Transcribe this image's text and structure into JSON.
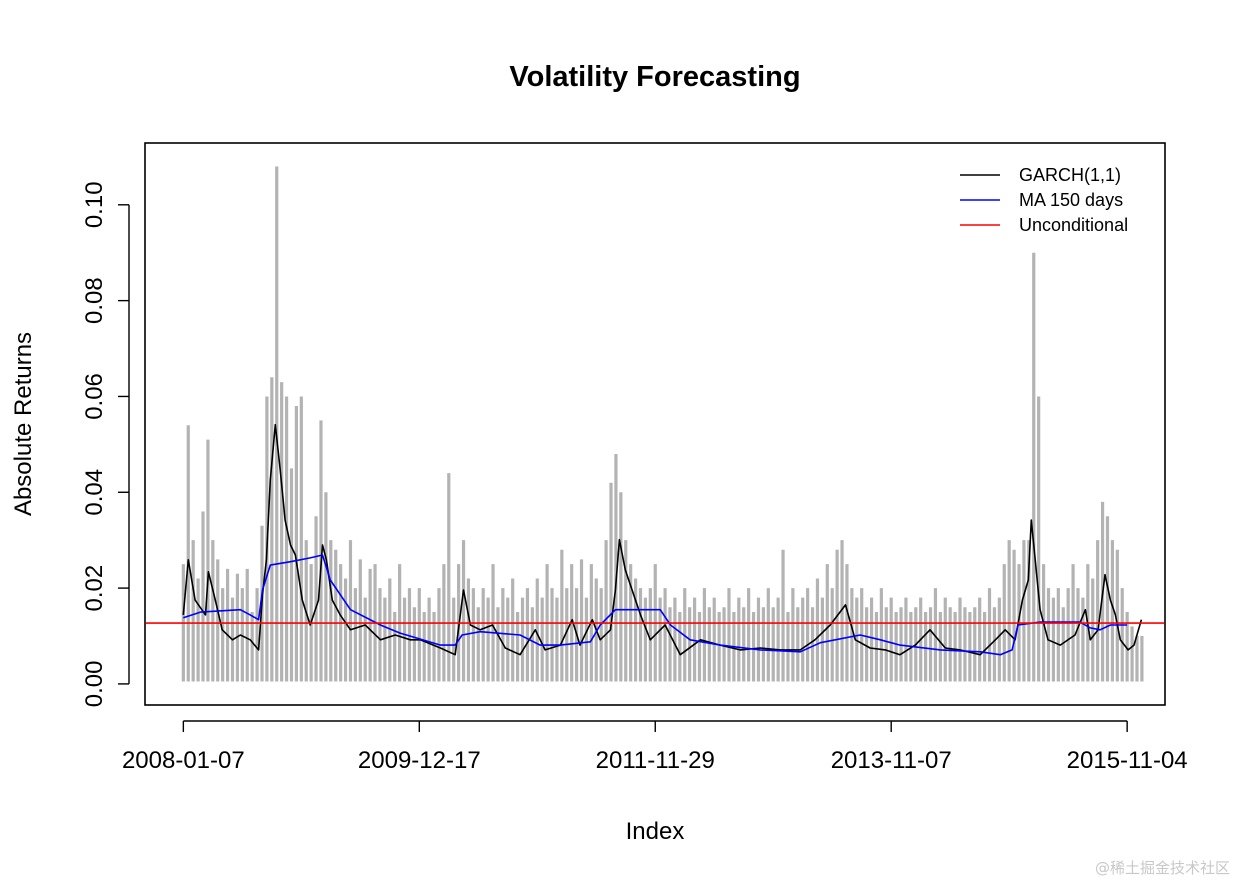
{
  "chart_data": {
    "type": "line",
    "title": "Volatility Forecasting",
    "xlabel": "Index",
    "ylabel": "Absolute Returns",
    "xlim": [
      -78,
      1997
    ],
    "ylim": [
      -0.0044,
      0.1129
    ],
    "grid": false,
    "legend_position": "top-right",
    "x_ticks": [
      {
        "x": 0,
        "label": "2008-01-07"
      },
      {
        "x": 480,
        "label": "2009-12-17"
      },
      {
        "x": 960,
        "label": "2011-11-29"
      },
      {
        "x": 1440,
        "label": "2013-11-07"
      },
      {
        "x": 1920,
        "label": "2015-11-04"
      }
    ],
    "y_ticks": [
      {
        "y": 0.0,
        "label": "0.00"
      },
      {
        "y": 0.02,
        "label": "0.02"
      },
      {
        "y": 0.04,
        "label": "0.04"
      },
      {
        "y": 0.06,
        "label": "0.06"
      },
      {
        "y": 0.08,
        "label": "0.08"
      },
      {
        "y": 0.1,
        "label": "0.10"
      }
    ],
    "absolute_returns": {
      "color": "#b3b3b3",
      "x_step": 10,
      "values": [
        0.025,
        0.054,
        0.03,
        0.022,
        0.036,
        0.051,
        0.03,
        0.026,
        0.02,
        0.024,
        0.018,
        0.023,
        0.02,
        0.024,
        0.015,
        0.02,
        0.033,
        0.06,
        0.064,
        0.108,
        0.063,
        0.06,
        0.045,
        0.058,
        0.06,
        0.03,
        0.025,
        0.035,
        0.055,
        0.04,
        0.03,
        0.028,
        0.025,
        0.022,
        0.03,
        0.02,
        0.026,
        0.018,
        0.024,
        0.025,
        0.02,
        0.018,
        0.022,
        0.015,
        0.025,
        0.018,
        0.02,
        0.016,
        0.02,
        0.015,
        0.018,
        0.015,
        0.02,
        0.025,
        0.044,
        0.018,
        0.025,
        0.03,
        0.022,
        0.02,
        0.016,
        0.02,
        0.018,
        0.025,
        0.016,
        0.02,
        0.018,
        0.022,
        0.015,
        0.018,
        0.02,
        0.016,
        0.022,
        0.018,
        0.025,
        0.02,
        0.018,
        0.028,
        0.02,
        0.025,
        0.02,
        0.026,
        0.018,
        0.025,
        0.022,
        0.02,
        0.03,
        0.042,
        0.048,
        0.04,
        0.03,
        0.025,
        0.022,
        0.02,
        0.018,
        0.02,
        0.025,
        0.018,
        0.02,
        0.016,
        0.018,
        0.015,
        0.02,
        0.016,
        0.018,
        0.015,
        0.02,
        0.016,
        0.018,
        0.015,
        0.016,
        0.02,
        0.015,
        0.018,
        0.016,
        0.02,
        0.015,
        0.018,
        0.016,
        0.02,
        0.016,
        0.018,
        0.028,
        0.015,
        0.02,
        0.016,
        0.018,
        0.02,
        0.016,
        0.022,
        0.018,
        0.025,
        0.02,
        0.028,
        0.03,
        0.025,
        0.02,
        0.018,
        0.02,
        0.016,
        0.018,
        0.015,
        0.02,
        0.016,
        0.018,
        0.015,
        0.016,
        0.018,
        0.015,
        0.016,
        0.018,
        0.015,
        0.016,
        0.02,
        0.015,
        0.018,
        0.016,
        0.015,
        0.018,
        0.016,
        0.015,
        0.016,
        0.018,
        0.015,
        0.02,
        0.016,
        0.018,
        0.025,
        0.03,
        0.028,
        0.025,
        0.03,
        0.03,
        0.09,
        0.06,
        0.025,
        0.02,
        0.018,
        0.02,
        0.016,
        0.02,
        0.025,
        0.02,
        0.018,
        0.025,
        0.022,
        0.03,
        0.038,
        0.035,
        0.03,
        0.028,
        0.02,
        0.015,
        0.012,
        0.01,
        0.01
      ]
    },
    "series": [
      {
        "name": "GARCH(1,1)",
        "color": "#000000",
        "points": [
          [
            0,
            0.0144
          ],
          [
            10,
            0.0259
          ],
          [
            24,
            0.0175
          ],
          [
            45,
            0.0144
          ],
          [
            51,
            0.0234
          ],
          [
            65,
            0.0175
          ],
          [
            79,
            0.0113
          ],
          [
            100,
            0.0092
          ],
          [
            116,
            0.0102
          ],
          [
            136,
            0.0092
          ],
          [
            153,
            0.0071
          ],
          [
            161,
            0.0186
          ],
          [
            169,
            0.0259
          ],
          [
            177,
            0.0426
          ],
          [
            187,
            0.0541
          ],
          [
            197,
            0.0447
          ],
          [
            207,
            0.0342
          ],
          [
            218,
            0.029
          ],
          [
            228,
            0.0269
          ],
          [
            242,
            0.0175
          ],
          [
            258,
            0.0123
          ],
          [
            275,
            0.0175
          ],
          [
            283,
            0.029
          ],
          [
            291,
            0.0259
          ],
          [
            303,
            0.0175
          ],
          [
            319,
            0.0144
          ],
          [
            340,
            0.0113
          ],
          [
            370,
            0.0123
          ],
          [
            401,
            0.0092
          ],
          [
            431,
            0.0102
          ],
          [
            462,
            0.0092
          ],
          [
            482,
            0.0092
          ],
          [
            523,
            0.0075
          ],
          [
            553,
            0.0061
          ],
          [
            570,
            0.0196
          ],
          [
            584,
            0.0123
          ],
          [
            604,
            0.0113
          ],
          [
            629,
            0.0123
          ],
          [
            655,
            0.0075
          ],
          [
            685,
            0.0061
          ],
          [
            716,
            0.0113
          ],
          [
            736,
            0.0071
          ],
          [
            767,
            0.0081
          ],
          [
            791,
            0.0134
          ],
          [
            807,
            0.0081
          ],
          [
            832,
            0.0134
          ],
          [
            848,
            0.0092
          ],
          [
            869,
            0.0113
          ],
          [
            879,
            0.0196
          ],
          [
            887,
            0.0301
          ],
          [
            899,
            0.0238
          ],
          [
            913,
            0.0196
          ],
          [
            930,
            0.0144
          ],
          [
            950,
            0.0092
          ],
          [
            980,
            0.0123
          ],
          [
            1011,
            0.0061
          ],
          [
            1052,
            0.0092
          ],
          [
            1092,
            0.0081
          ],
          [
            1133,
            0.0071
          ],
          [
            1174,
            0.0075
          ],
          [
            1214,
            0.0071
          ],
          [
            1255,
            0.0071
          ],
          [
            1285,
            0.0092
          ],
          [
            1316,
            0.0123
          ],
          [
            1347,
            0.0165
          ],
          [
            1367,
            0.0092
          ],
          [
            1397,
            0.0075
          ],
          [
            1428,
            0.0071
          ],
          [
            1458,
            0.0061
          ],
          [
            1489,
            0.0081
          ],
          [
            1519,
            0.0113
          ],
          [
            1550,
            0.0075
          ],
          [
            1580,
            0.0071
          ],
          [
            1621,
            0.0061
          ],
          [
            1652,
            0.0092
          ],
          [
            1672,
            0.0113
          ],
          [
            1692,
            0.0092
          ],
          [
            1707,
            0.0175
          ],
          [
            1719,
            0.0217
          ],
          [
            1725,
            0.0342
          ],
          [
            1733,
            0.0259
          ],
          [
            1743,
            0.0155
          ],
          [
            1759,
            0.0092
          ],
          [
            1784,
            0.0081
          ],
          [
            1814,
            0.0102
          ],
          [
            1835,
            0.0155
          ],
          [
            1845,
            0.0092
          ],
          [
            1861,
            0.0113
          ],
          [
            1875,
            0.0228
          ],
          [
            1886,
            0.0175
          ],
          [
            1896,
            0.0144
          ],
          [
            1906,
            0.0092
          ],
          [
            1922,
            0.0071
          ],
          [
            1934,
            0.0081
          ],
          [
            1949,
            0.0134
          ]
        ]
      },
      {
        "name": "MA 150 days",
        "color": "#0000ff",
        "points": [
          [
            0,
            0.0138
          ],
          [
            35,
            0.015
          ],
          [
            116,
            0.0155
          ],
          [
            136,
            0.0144
          ],
          [
            153,
            0.0134
          ],
          [
            161,
            0.0196
          ],
          [
            177,
            0.0248
          ],
          [
            218,
            0.0255
          ],
          [
            258,
            0.0263
          ],
          [
            283,
            0.0269
          ],
          [
            299,
            0.0217
          ],
          [
            340,
            0.0155
          ],
          [
            401,
            0.0123
          ],
          [
            441,
            0.0106
          ],
          [
            523,
            0.0081
          ],
          [
            553,
            0.0081
          ],
          [
            567,
            0.0102
          ],
          [
            604,
            0.0109
          ],
          [
            685,
            0.0102
          ],
          [
            726,
            0.0081
          ],
          [
            767,
            0.0081
          ],
          [
            828,
            0.0088
          ],
          [
            848,
            0.0123
          ],
          [
            879,
            0.0155
          ],
          [
            970,
            0.0155
          ],
          [
            991,
            0.0123
          ],
          [
            1031,
            0.0092
          ],
          [
            1092,
            0.0081
          ],
          [
            1174,
            0.0071
          ],
          [
            1255,
            0.0067
          ],
          [
            1296,
            0.0086
          ],
          [
            1377,
            0.0102
          ],
          [
            1418,
            0.0092
          ],
          [
            1458,
            0.0081
          ],
          [
            1540,
            0.0071
          ],
          [
            1621,
            0.0067
          ],
          [
            1662,
            0.0061
          ],
          [
            1686,
            0.0071
          ],
          [
            1698,
            0.0123
          ],
          [
            1743,
            0.0129
          ],
          [
            1824,
            0.0129
          ],
          [
            1845,
            0.0117
          ],
          [
            1865,
            0.0113
          ],
          [
            1886,
            0.0123
          ],
          [
            1920,
            0.0123
          ]
        ]
      },
      {
        "name": "Unconditional",
        "color": "#ff0000",
        "hline": 0.0127
      }
    ]
  },
  "watermark": "@稀土掘金技术社区"
}
